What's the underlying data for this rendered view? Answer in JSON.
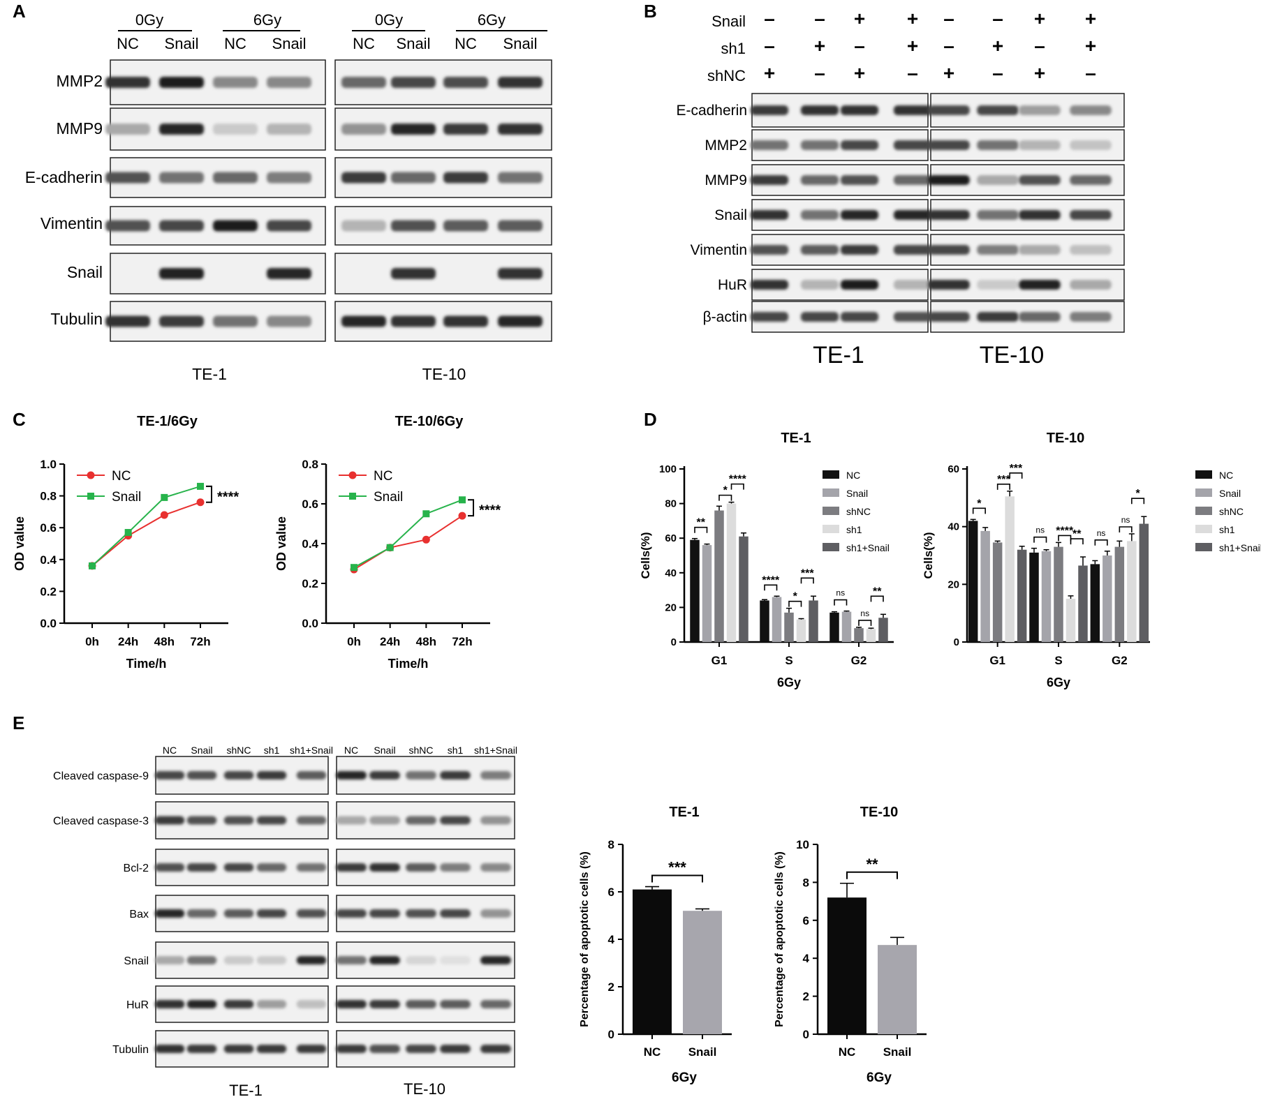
{
  "panels": {
    "A": "A",
    "B": "B",
    "C": "C",
    "D": "D",
    "E": "E"
  },
  "blotA": {
    "doses": [
      "0Gy",
      "6Gy",
      "0Gy",
      "6Gy"
    ],
    "lanes": [
      "NC",
      "Snail",
      "NC",
      "Snail",
      "NC",
      "Snail",
      "NC",
      "Snail"
    ],
    "rows": [
      "MMP2",
      "MMP9",
      "E-cadherin",
      "Vimentin",
      "Snail",
      "Tubulin"
    ],
    "cells": [
      "TE-1",
      "TE-10"
    ]
  },
  "blotB": {
    "conditions": [
      {
        "label": "Snail",
        "signs": [
          "-",
          "-",
          "+",
          "+",
          "-",
          "-",
          "+",
          "+"
        ]
      },
      {
        "label": "sh1",
        "signs": [
          "-",
          "+",
          "-",
          "+",
          "-",
          "+",
          "-",
          "+"
        ]
      },
      {
        "label": "shNC",
        "signs": [
          "+",
          "-",
          "+",
          "-",
          "+",
          "-",
          "+",
          "-"
        ]
      }
    ],
    "rows": [
      "E-cadherin",
      "MMP2",
      "MMP9",
      "Snail",
      "Vimentin",
      "HuR",
      "β-actin"
    ],
    "cells": [
      "TE-1",
      "TE-10"
    ]
  },
  "blotE": {
    "lanes": [
      "NC",
      "Snail",
      "shNC",
      "sh1",
      "sh1+Snail",
      "NC",
      "Snail",
      "shNC",
      "sh1",
      "sh1+Snail"
    ],
    "rows": [
      "Cleaved caspase-9",
      "Cleaved caspase-3",
      "Bcl-2",
      "Bax",
      "Snail",
      "HuR",
      "Tubulin"
    ],
    "cells": [
      "TE-1",
      "TE-10"
    ]
  },
  "colors": {
    "nc_line": "#e8302f",
    "snail_line": "#27b34b",
    "black": "#000000"
  },
  "chart_data": [
    {
      "type": "line",
      "title": "TE-1/6Gy",
      "xlabel": "Time/h",
      "ylabel": "OD value",
      "x": [
        "0h",
        "24h",
        "48h",
        "72h"
      ],
      "ylim": [
        0,
        1.0
      ],
      "yticks": [
        "0.0",
        "0.2",
        "0.4",
        "0.6",
        "0.8",
        "1.0"
      ],
      "series": [
        {
          "name": "NC",
          "values": [
            0.36,
            0.55,
            0.68,
            0.76
          ]
        },
        {
          "name": "Snail",
          "values": [
            0.36,
            0.57,
            0.79,
            0.86
          ]
        }
      ],
      "annotation": "****"
    },
    {
      "type": "line",
      "title": "TE-10/6Gy",
      "xlabel": "Time/h",
      "ylabel": "OD value",
      "x": [
        "0h",
        "24h",
        "48h",
        "72h"
      ],
      "ylim": [
        0,
        0.8
      ],
      "yticks": [
        "0.0",
        "0.2",
        "0.4",
        "0.6",
        "0.8"
      ],
      "series": [
        {
          "name": "NC",
          "values": [
            0.27,
            0.38,
            0.42,
            0.54
          ]
        },
        {
          "name": "Snail",
          "values": [
            0.28,
            0.38,
            0.55,
            0.62
          ]
        }
      ],
      "annotation": "****"
    },
    {
      "type": "bar",
      "title": "TE-1",
      "xlabel": "6Gy",
      "ylabel": "Cells(%)",
      "categories": [
        "G1",
        "S",
        "G2"
      ],
      "ylim": [
        0,
        100
      ],
      "yticks": [
        "0",
        "20",
        "40",
        "60",
        "80",
        "100"
      ],
      "series": [
        {
          "name": "NC",
          "values": [
            59,
            24,
            17
          ],
          "errors": [
            0.8,
            0.5,
            0.5
          ]
        },
        {
          "name": "Snail",
          "values": [
            56,
            26,
            17.5
          ],
          "errors": [
            0.6,
            0.5,
            0.4
          ]
        },
        {
          "name": "shNC",
          "values": [
            76,
            17,
            8
          ],
          "errors": [
            2.5,
            2.5,
            0.5
          ]
        },
        {
          "name": "sh1",
          "values": [
            80,
            13,
            7.5
          ],
          "errors": [
            0.8,
            0.5,
            0.5
          ]
        },
        {
          "name": "sh1+Snail",
          "values": [
            61,
            24,
            14
          ],
          "errors": [
            2,
            2.5,
            2
          ]
        }
      ],
      "significance": [
        {
          "cat": 0,
          "a": 0,
          "b": 1,
          "label": "**"
        },
        {
          "cat": 0,
          "a": 2,
          "b": 3,
          "label": "*"
        },
        {
          "cat": 0,
          "a": 3,
          "b": 4,
          "label": "****"
        },
        {
          "cat": 1,
          "a": 0,
          "b": 1,
          "label": "****"
        },
        {
          "cat": 1,
          "a": 2,
          "b": 3,
          "label": "*"
        },
        {
          "cat": 1,
          "a": 3,
          "b": 4,
          "label": "***"
        },
        {
          "cat": 2,
          "a": 0,
          "b": 1,
          "label": "ns"
        },
        {
          "cat": 2,
          "a": 2,
          "b": 3,
          "label": "ns"
        },
        {
          "cat": 2,
          "a": 3,
          "b": 4,
          "label": "**"
        }
      ]
    },
    {
      "type": "bar",
      "title": "TE-10",
      "xlabel": "6Gy",
      "ylabel": "Cells(%)",
      "categories": [
        "G1",
        "S",
        "G2"
      ],
      "ylim": [
        0,
        60
      ],
      "yticks": [
        "0",
        "20",
        "40",
        "60"
      ],
      "series": [
        {
          "name": "NC",
          "values": [
            42,
            31,
            27
          ],
          "errors": [
            0.5,
            1.5,
            1.2
          ]
        },
        {
          "name": "Snail",
          "values": [
            38.5,
            31.5,
            30
          ],
          "errors": [
            1.2,
            0.5,
            1.5
          ]
        },
        {
          "name": "shNC",
          "values": [
            34.5,
            33,
            33
          ],
          "errors": [
            0.5,
            1.5,
            2
          ]
        },
        {
          "name": "sh1",
          "values": [
            50.5,
            15,
            35
          ],
          "errors": [
            1.8,
            1,
            2.5
          ]
        },
        {
          "name": "sh1+Snail",
          "values": [
            32,
            26.5,
            41
          ],
          "errors": [
            1.2,
            3,
            2.5
          ]
        }
      ],
      "significance": [
        {
          "cat": 0,
          "a": 0,
          "b": 1,
          "label": "*"
        },
        {
          "cat": 0,
          "a": 2,
          "b": 3,
          "label": "***"
        },
        {
          "cat": 0,
          "a": 3,
          "b": 4,
          "label": "***"
        },
        {
          "cat": 1,
          "a": 0,
          "b": 1,
          "label": "ns"
        },
        {
          "cat": 1,
          "a": 2,
          "b": 3,
          "label": "****"
        },
        {
          "cat": 1,
          "a": 3,
          "b": 4,
          "label": "**"
        },
        {
          "cat": 2,
          "a": 0,
          "b": 1,
          "label": "ns"
        },
        {
          "cat": 2,
          "a": 2,
          "b": 3,
          "label": "ns"
        },
        {
          "cat": 2,
          "a": 3,
          "b": 4,
          "label": "*"
        }
      ]
    },
    {
      "type": "bar",
      "title": "TE-1",
      "xlabel": "6Gy",
      "ylabel": "Percentage of apoptotic cells (%)",
      "categories": [
        "NC",
        "Snail"
      ],
      "values": [
        6.1,
        5.2
      ],
      "errors": [
        0.12,
        0.08
      ],
      "ylim": [
        0,
        8
      ],
      "yticks": [
        "0",
        "2",
        "4",
        "6",
        "8"
      ],
      "annotation": "***"
    },
    {
      "type": "bar",
      "title": "TE-10",
      "xlabel": "6Gy",
      "ylabel": "Percentage of apoptotic cells (%)",
      "categories": [
        "NC",
        "Snail"
      ],
      "values": [
        7.2,
        4.7
      ],
      "errors": [
        0.75,
        0.4
      ],
      "ylim": [
        0,
        10
      ],
      "yticks": [
        "0",
        "2",
        "4",
        "6",
        "8",
        "10"
      ],
      "annotation": "**"
    }
  ]
}
